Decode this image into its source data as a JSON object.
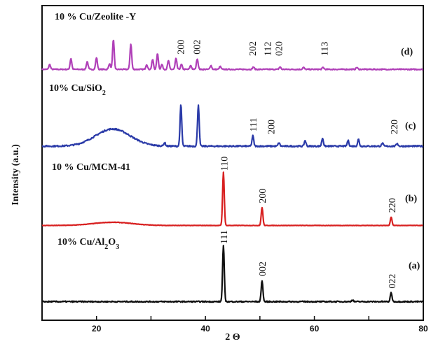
{
  "chart_data": {
    "type": "line",
    "title": "",
    "xlabel": "2 Θ",
    "ylabel": "Intensity (a.u.)",
    "xlim": [
      10,
      80
    ],
    "xticks": [
      "20",
      "40",
      "60",
      "80"
    ],
    "grid": false,
    "legend": "none",
    "series": [
      {
        "panel": "(d)",
        "label": "10 % Cu/Zeolite -Y",
        "color": "#b040b8",
        "baseline": 0.04,
        "noise": 0.01,
        "peaks": [
          {
            "x": 11.4,
            "h": 0.1
          },
          {
            "x": 15.3,
            "h": 0.22
          },
          {
            "x": 18.3,
            "h": 0.16
          },
          {
            "x": 20.0,
            "h": 0.24
          },
          {
            "x": 22.4,
            "h": 0.12
          },
          {
            "x": 23.1,
            "h": 0.6
          },
          {
            "x": 26.3,
            "h": 0.52
          },
          {
            "x": 29.2,
            "h": 0.1
          },
          {
            "x": 30.3,
            "h": 0.2
          },
          {
            "x": 31.2,
            "h": 0.32
          },
          {
            "x": 32.0,
            "h": 0.1
          },
          {
            "x": 33.2,
            "h": 0.18
          },
          {
            "x": 34.6,
            "h": 0.22
          },
          {
            "x": 35.6,
            "h": 0.1
          },
          {
            "x": 37.3,
            "h": 0.08
          },
          {
            "x": 38.5,
            "h": 0.22
          },
          {
            "x": 41.0,
            "h": 0.08
          },
          {
            "x": 42.7,
            "h": 0.06
          },
          {
            "x": 48.8,
            "h": 0.05
          },
          {
            "x": 53.7,
            "h": 0.05
          },
          {
            "x": 58.0,
            "h": 0.04
          },
          {
            "x": 61.6,
            "h": 0.04
          },
          {
            "x": 67.8,
            "h": 0.04
          }
        ],
        "reflections": [
          {
            "hkl": "200",
            "x": 35.4
          },
          {
            "hkl": "002",
            "x": 38.4
          },
          {
            "hkl": "202",
            "x": 48.6
          },
          {
            "hkl": "112",
            "x": 51.4
          },
          {
            "hkl": "020",
            "x": 53.4
          },
          {
            "hkl": "113",
            "x": 61.8
          }
        ]
      },
      {
        "panel": "(c)",
        "label": "10% Cu/SiO",
        "label_subscript": "2",
        "color": "#2a3aa8",
        "baseline": 0.06,
        "noise": 0.012,
        "hump": {
          "x": 23.0,
          "h": 0.3,
          "w": 4.5
        },
        "peaks": [
          {
            "x": 32.5,
            "h": 0.06
          },
          {
            "x": 35.5,
            "h": 0.72
          },
          {
            "x": 38.7,
            "h": 0.72
          },
          {
            "x": 48.7,
            "h": 0.18
          },
          {
            "x": 53.5,
            "h": 0.06
          },
          {
            "x": 58.3,
            "h": 0.1
          },
          {
            "x": 61.5,
            "h": 0.14
          },
          {
            "x": 66.2,
            "h": 0.1
          },
          {
            "x": 68.1,
            "h": 0.12
          },
          {
            "x": 72.5,
            "h": 0.05
          },
          {
            "x": 75.2,
            "h": 0.05
          }
        ],
        "reflections": [
          {
            "hkl": "111",
            "x": 48.7
          },
          {
            "hkl": "200",
            "x": 52.0
          },
          {
            "hkl": "220",
            "x": 74.6
          }
        ]
      },
      {
        "panel": "(b)",
        "label": "10 % Cu/MCM-41",
        "color": "#d82020",
        "baseline": 0.02,
        "noise": 0.004,
        "hump": {
          "x": 23.0,
          "h": 0.06,
          "w": 5.0
        },
        "peaks": [
          {
            "x": 43.3,
            "h": 1.0
          },
          {
            "x": 50.4,
            "h": 0.34
          },
          {
            "x": 74.1,
            "h": 0.16
          }
        ],
        "reflections": [
          {
            "hkl": "110",
            "x": 43.4
          },
          {
            "hkl": "200",
            "x": 50.4
          },
          {
            "hkl": "220",
            "x": 74.2
          }
        ]
      },
      {
        "panel": "(a)",
        "label": "10% Cu/Al",
        "label_subscript": "2",
        "label_suffix": "O",
        "label_subscript2": "3",
        "color": "#111111",
        "baseline": 0.02,
        "noise": 0.01,
        "peaks": [
          {
            "x": 43.3,
            "h": 1.0
          },
          {
            "x": 50.4,
            "h": 0.38
          },
          {
            "x": 67.0,
            "h": 0.03
          },
          {
            "x": 74.1,
            "h": 0.16
          }
        ],
        "reflections": [
          {
            "hkl": "111",
            "x": 43.3
          },
          {
            "hkl": "002",
            "x": 50.4
          },
          {
            "hkl": "022",
            "x": 74.2
          }
        ]
      }
    ]
  }
}
